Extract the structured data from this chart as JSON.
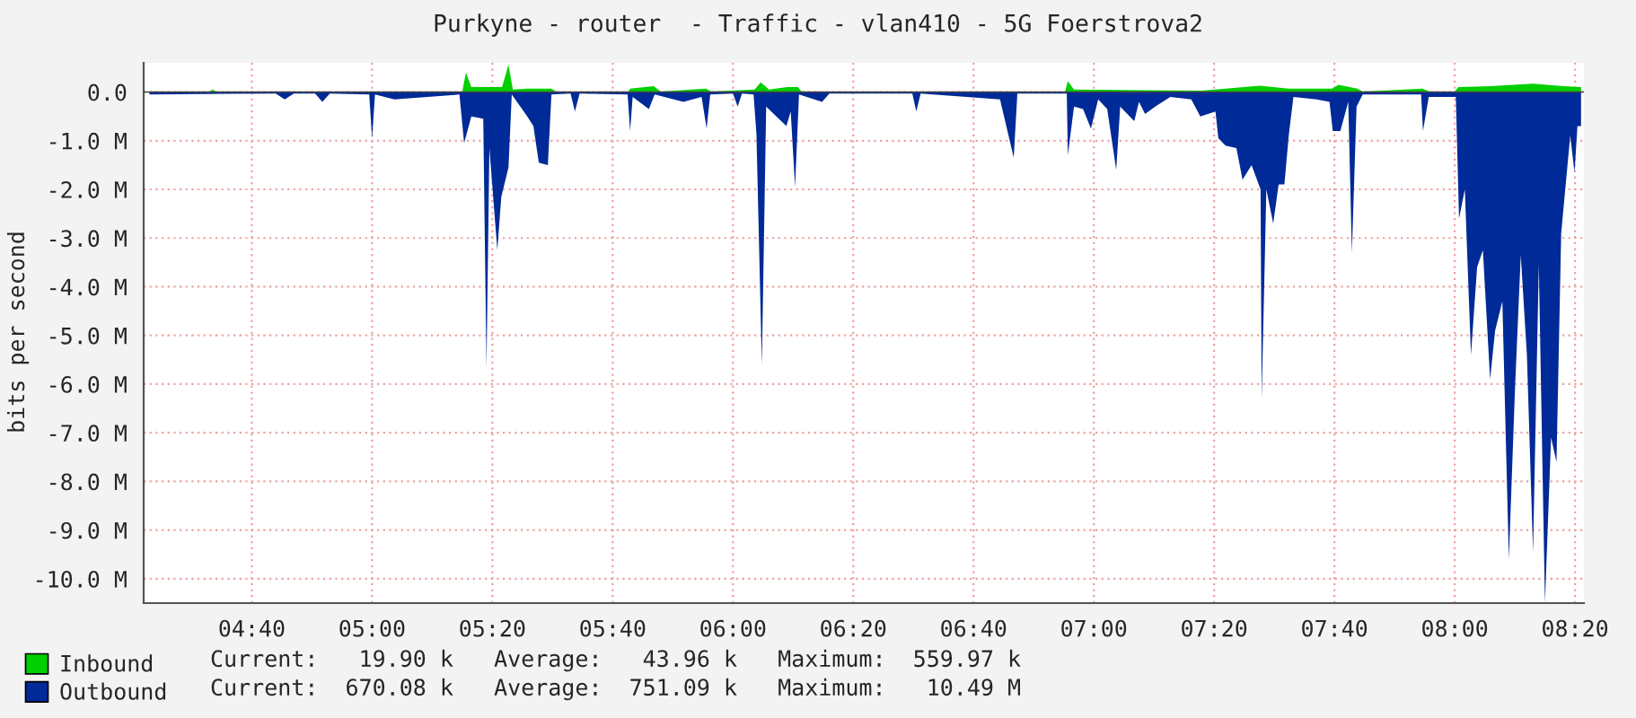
{
  "chart_data": {
    "type": "area",
    "title": "Purkyne - router  - Traffic - vlan410 - 5G Foerstrova2",
    "ylabel": "bits per second",
    "series": [
      {
        "name": "Inbound",
        "color": "#00cf00",
        "x": [
          4.383,
          4.55,
          4.558,
          4.567,
          5.25,
          5.26,
          5.275,
          5.36,
          5.378,
          5.39,
          5.43,
          5.497,
          5.51,
          5.71,
          5.715,
          5.78,
          5.8,
          5.925,
          5.94,
          6.06,
          6.077,
          6.1,
          6.15,
          6.18,
          6.19,
          6.92,
          6.928,
          6.945,
          7.3,
          7.46,
          7.54,
          7.66,
          7.678,
          7.73,
          7.745,
          7.91,
          7.93,
          8.0,
          8.01,
          8.1,
          8.217,
          8.3,
          8.35
        ],
        "values": [
          0.01,
          0.01,
          0.05,
          0.01,
          0.01,
          0.4,
          0.1,
          0.1,
          0.56,
          0.05,
          0.07,
          0.07,
          0.01,
          0.01,
          0.07,
          0.12,
          0.01,
          0.07,
          0.01,
          0.05,
          0.2,
          0.05,
          0.1,
          0.1,
          0.01,
          0.01,
          0.22,
          0.05,
          0.03,
          0.13,
          0.07,
          0.07,
          0.15,
          0.07,
          0.01,
          0.07,
          0.01,
          0.01,
          0.1,
          0.12,
          0.17,
          0.12,
          0.1
        ]
      },
      {
        "name": "Outbound",
        "color": "#002a97",
        "x": [
          4.383,
          4.733,
          4.758,
          4.783,
          4.842,
          4.862,
          4.883,
          4.992,
          5.0,
          5.008,
          5.062,
          5.242,
          5.255,
          5.275,
          5.308,
          5.317,
          5.325,
          5.347,
          5.358,
          5.378,
          5.387,
          5.43,
          5.447,
          5.462,
          5.487,
          5.497,
          5.55,
          5.562,
          5.575,
          5.708,
          5.715,
          5.722,
          5.767,
          5.783,
          5.863,
          5.913,
          5.927,
          5.937,
          6.0,
          6.013,
          6.025,
          6.057,
          6.065,
          6.08,
          6.092,
          6.148,
          6.16,
          6.172,
          6.183,
          6.247,
          6.267,
          6.497,
          6.508,
          6.52,
          6.74,
          6.778,
          6.788,
          6.925,
          6.928,
          6.945,
          6.97,
          6.992,
          7.012,
          7.037,
          7.062,
          7.073,
          7.112,
          7.125,
          7.142,
          7.17,
          7.212,
          7.27,
          7.295,
          7.337,
          7.345,
          7.365,
          7.395,
          7.412,
          7.437,
          7.462,
          7.465,
          7.478,
          7.497,
          7.512,
          7.528,
          7.54,
          7.553,
          7.617,
          7.653,
          7.662,
          7.683,
          7.705,
          7.715,
          7.728,
          7.745,
          7.907,
          7.912,
          7.928,
          8.003,
          8.012,
          8.028,
          8.045,
          8.062,
          8.078,
          8.098,
          8.112,
          8.132,
          8.15,
          8.167,
          8.183,
          8.2,
          8.217,
          8.233,
          8.25,
          8.267,
          8.282,
          8.295,
          8.32,
          8.332,
          8.34,
          8.35
        ],
        "values": [
          -0.05,
          -0.03,
          -0.15,
          -0.03,
          -0.03,
          -0.2,
          -0.03,
          -0.05,
          -0.95,
          -0.05,
          -0.15,
          -0.05,
          -1.05,
          -0.5,
          -0.55,
          -5.65,
          -1.15,
          -3.25,
          -2.15,
          -1.55,
          -0.05,
          -0.5,
          -0.7,
          -1.45,
          -1.5,
          -0.05,
          -0.03,
          -0.4,
          -0.03,
          -0.05,
          -0.8,
          -0.1,
          -0.35,
          -0.05,
          -0.2,
          -0.1,
          -0.75,
          -0.05,
          -0.03,
          -0.3,
          -0.03,
          -0.05,
          -0.85,
          -5.6,
          -0.3,
          -0.7,
          -0.4,
          -1.95,
          -0.05,
          -0.2,
          -0.03,
          -0.03,
          -0.4,
          -0.03,
          -0.15,
          -1.35,
          -0.03,
          -0.03,
          -1.3,
          -0.3,
          -0.35,
          -0.75,
          -0.15,
          -0.35,
          -1.6,
          -0.3,
          -0.6,
          -0.2,
          -0.45,
          -0.3,
          -0.1,
          -0.15,
          -0.5,
          -0.4,
          -0.95,
          -1.1,
          -1.15,
          -1.8,
          -1.5,
          -2.0,
          -6.3,
          -2.0,
          -2.7,
          -1.9,
          -1.9,
          -0.9,
          -0.1,
          -0.15,
          -0.2,
          -0.8,
          -0.8,
          -0.2,
          -3.3,
          -0.3,
          -0.05,
          -0.05,
          -0.8,
          -0.1,
          -0.1,
          -2.6,
          -2.0,
          -5.4,
          -3.6,
          -3.25,
          -5.9,
          -4.9,
          -4.3,
          -9.6,
          -6.1,
          -3.35,
          -5.4,
          -9.45,
          -3.55,
          -10.49,
          -7.1,
          -7.6,
          -2.9,
          -0.9,
          -1.65,
          -0.7,
          -0.7
        ]
      }
    ],
    "xlim": [
      4.367,
      8.358
    ],
    "xticks": [
      {
        "value": 4.6667,
        "label": "04:40"
      },
      {
        "value": 5.0,
        "label": "05:00"
      },
      {
        "value": 5.3333,
        "label": "05:20"
      },
      {
        "value": 5.6667,
        "label": "05:40"
      },
      {
        "value": 6.0,
        "label": "06:00"
      },
      {
        "value": 6.3333,
        "label": "06:20"
      },
      {
        "value": 6.6667,
        "label": "06:40"
      },
      {
        "value": 7.0,
        "label": "07:00"
      },
      {
        "value": 7.3333,
        "label": "07:20"
      },
      {
        "value": 7.6667,
        "label": "07:40"
      },
      {
        "value": 8.0,
        "label": "08:00"
      },
      {
        "value": 8.3333,
        "label": "08:20"
      }
    ],
    "ylim": [
      -10.5,
      0.6
    ],
    "yticks": [
      {
        "value": 0,
        "label": "0.0"
      },
      {
        "value": -1,
        "label": "-1.0 M"
      },
      {
        "value": -2,
        "label": "-2.0 M"
      },
      {
        "value": -3,
        "label": "-3.0 M"
      },
      {
        "value": -4,
        "label": "-4.0 M"
      },
      {
        "value": -5,
        "label": "-5.0 M"
      },
      {
        "value": -6,
        "label": "-6.0 M"
      },
      {
        "value": -7,
        "label": "-7.0 M"
      },
      {
        "value": -8,
        "label": "-8.0 M"
      },
      {
        "value": -9,
        "label": "-9.0 M"
      },
      {
        "value": -10,
        "label": "-10.0 M"
      }
    ],
    "grid": true,
    "legend": "bottom",
    "annotations": [
      "Current:   19.90 k   Average:   43.96 k   Maximum:  559.97 k",
      "Current:  670.08 k   Average:  751.09 k   Maximum:   10.49 M"
    ]
  }
}
